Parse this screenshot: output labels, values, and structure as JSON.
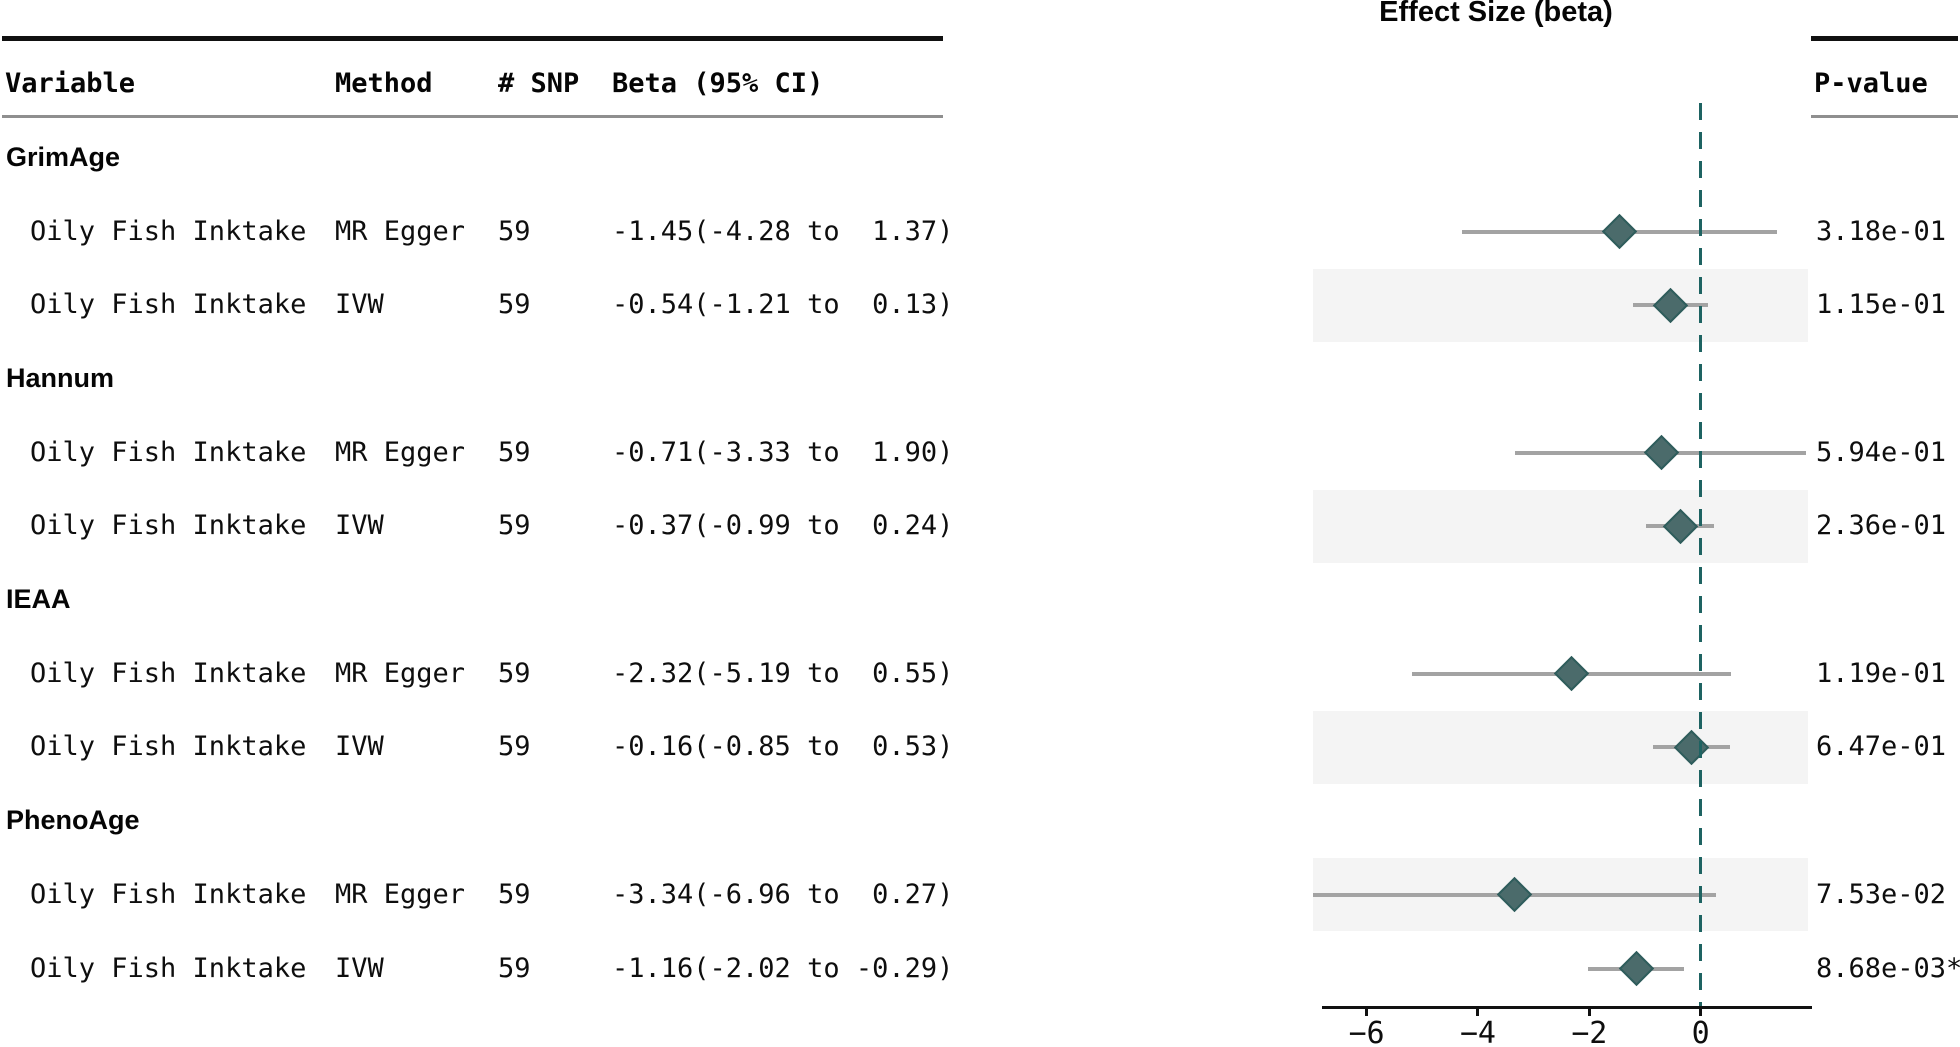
{
  "title": "Effect Size (beta)",
  "table": {
    "headers": {
      "variable": "Variable",
      "method": "Method",
      "snp": "# SNP",
      "beta": "Beta (95% CI)",
      "pvalue": "P-value"
    }
  },
  "groups": [
    {
      "name": "GrimAge",
      "rows": [
        {
          "variable": "Oily Fish Inktake",
          "method": "MR Egger",
          "snp": "59",
          "beta": "-1.45(-4.28 to  1.37)",
          "pvalue": "3.18e-01",
          "est": -1.45,
          "lo": -4.28,
          "hi": 1.37,
          "shaded": false
        },
        {
          "variable": "Oily Fish Inktake",
          "method": "IVW",
          "snp": "59",
          "beta": "-0.54(-1.21 to  0.13)",
          "pvalue": "1.15e-01",
          "est": -0.54,
          "lo": -1.21,
          "hi": 0.13,
          "shaded": true
        }
      ]
    },
    {
      "name": "Hannum",
      "rows": [
        {
          "variable": "Oily Fish Inktake",
          "method": "MR Egger",
          "snp": "59",
          "beta": "-0.71(-3.33 to  1.90)",
          "pvalue": "5.94e-01",
          "est": -0.71,
          "lo": -3.33,
          "hi": 1.9,
          "shaded": false
        },
        {
          "variable": "Oily Fish Inktake",
          "method": "IVW",
          "snp": "59",
          "beta": "-0.37(-0.99 to  0.24)",
          "pvalue": "2.36e-01",
          "est": -0.37,
          "lo": -0.99,
          "hi": 0.24,
          "shaded": true
        }
      ]
    },
    {
      "name": "IEAA",
      "rows": [
        {
          "variable": "Oily Fish Inktake",
          "method": "MR Egger",
          "snp": "59",
          "beta": "-2.32(-5.19 to  0.55)",
          "pvalue": "1.19e-01",
          "est": -2.32,
          "lo": -5.19,
          "hi": 0.55,
          "shaded": false
        },
        {
          "variable": "Oily Fish Inktake",
          "method": "IVW",
          "snp": "59",
          "beta": "-0.16(-0.85 to  0.53)",
          "pvalue": "6.47e-01",
          "est": -0.16,
          "lo": -0.85,
          "hi": 0.53,
          "shaded": true
        }
      ]
    },
    {
      "name": "PhenoAge",
      "rows": [
        {
          "variable": "Oily Fish Inktake",
          "method": "MR Egger",
          "snp": "59",
          "beta": "-3.34(-6.96 to  0.27)",
          "pvalue": "7.53e-02",
          "est": -3.34,
          "lo": -6.96,
          "hi": 0.27,
          "shaded": true
        },
        {
          "variable": "Oily Fish Inktake",
          "method": "IVW",
          "snp": "59",
          "beta": "-1.16(-2.02 to -0.29)",
          "pvalue": "8.68e-03*",
          "est": -1.16,
          "lo": -2.02,
          "hi": -0.29,
          "shaded": false
        }
      ]
    }
  ],
  "chart_data": {
    "type": "forest",
    "title": "Effect Size (beta)",
    "xlabel": "Effect Size (beta)",
    "xlim": [
      -6.8,
      2.0
    ],
    "xticks": [
      -6,
      -4,
      -2,
      0
    ],
    "zero_line": 0,
    "grid": false,
    "colors": {
      "marker_fill": "#4b6b6b",
      "marker_border": "#2f5d5c",
      "ci_line": "#a3a3a3",
      "zero_line": "#1e6362",
      "band": "#f4f4f4",
      "axis": "#111111"
    },
    "rows": [
      {
        "group": "GrimAge",
        "variable": "Oily Fish Inktake",
        "method": "MR Egger",
        "snp": 59,
        "est": -1.45,
        "lo": -4.28,
        "hi": 1.37,
        "pvalue": "3.18e-01",
        "shaded": false
      },
      {
        "group": "GrimAge",
        "variable": "Oily Fish Inktake",
        "method": "IVW",
        "snp": 59,
        "est": -0.54,
        "lo": -1.21,
        "hi": 0.13,
        "pvalue": "1.15e-01",
        "shaded": true
      },
      {
        "group": "Hannum",
        "variable": "Oily Fish Inktake",
        "method": "MR Egger",
        "snp": 59,
        "est": -0.71,
        "lo": -3.33,
        "hi": 1.9,
        "pvalue": "5.94e-01",
        "shaded": false
      },
      {
        "group": "Hannum",
        "variable": "Oily Fish Inktake",
        "method": "IVW",
        "snp": 59,
        "est": -0.37,
        "lo": -0.99,
        "hi": 0.24,
        "pvalue": "2.36e-01",
        "shaded": true
      },
      {
        "group": "IEAA",
        "variable": "Oily Fish Inktake",
        "method": "MR Egger",
        "snp": 59,
        "est": -2.32,
        "lo": -5.19,
        "hi": 0.55,
        "pvalue": "1.19e-01",
        "shaded": false
      },
      {
        "group": "IEAA",
        "variable": "Oily Fish Inktake",
        "method": "IVW",
        "snp": 59,
        "est": -0.16,
        "lo": -0.85,
        "hi": 0.53,
        "pvalue": "6.47e-01",
        "shaded": true
      },
      {
        "group": "PhenoAge",
        "variable": "Oily Fish Inktake",
        "method": "MR Egger",
        "snp": 59,
        "est": -3.34,
        "lo": -6.96,
        "hi": 0.27,
        "pvalue": "7.53e-02",
        "shaded": true
      },
      {
        "group": "PhenoAge",
        "variable": "Oily Fish Inktake",
        "method": "IVW",
        "snp": 59,
        "est": -1.16,
        "lo": -2.02,
        "hi": -0.29,
        "pvalue": "8.68e-03*",
        "shaded": false
      }
    ]
  }
}
